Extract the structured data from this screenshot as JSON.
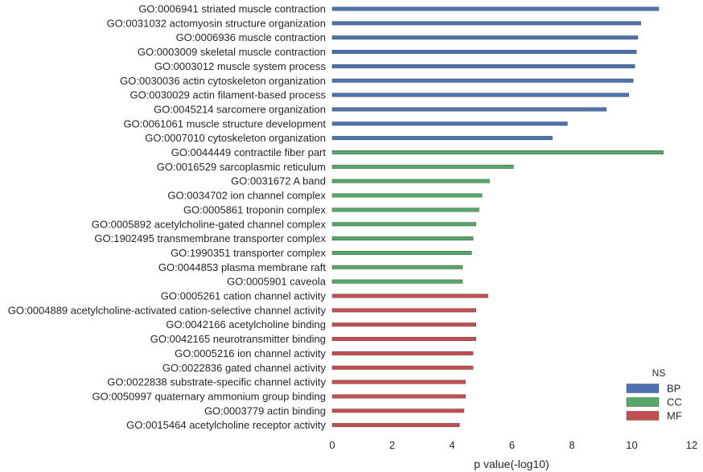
{
  "chart_data": {
    "type": "bar",
    "orientation": "horizontal",
    "xlabel": "p value(-log10)",
    "ylabel": "",
    "xlim": [
      0,
      12
    ],
    "xticks": [
      0,
      2,
      4,
      6,
      8,
      10,
      12
    ],
    "grid": false,
    "legend": {
      "title": "NS",
      "placement": "bottom-right",
      "entries": [
        {
          "name": "BP",
          "color": "#4c72b0"
        },
        {
          "name": "CC",
          "color": "#55a868"
        },
        {
          "name": "MF",
          "color": "#c44e52"
        }
      ]
    },
    "bars": [
      {
        "category": "GO:0006941 striated muscle contraction",
        "group": "BP",
        "value": 10.9
      },
      {
        "category": "GO:0031032 actomyosin structure organization",
        "group": "BP",
        "value": 10.3
      },
      {
        "category": "GO:0006936 muscle contraction",
        "group": "BP",
        "value": 10.2
      },
      {
        "category": "GO:0003009 skeletal muscle contraction",
        "group": "BP",
        "value": 10.15
      },
      {
        "category": "GO:0003012 muscle system process",
        "group": "BP",
        "value": 10.1
      },
      {
        "category": "GO:0030036 actin cytoskeleton organization",
        "group": "BP",
        "value": 10.05
      },
      {
        "category": "GO:0030029 actin filament-based process",
        "group": "BP",
        "value": 9.9
      },
      {
        "category": "GO:0045214 sarcomere organization",
        "group": "BP",
        "value": 9.15
      },
      {
        "category": "GO:0061061 muscle structure development",
        "group": "BP",
        "value": 7.85
      },
      {
        "category": "GO:0007010 cytoskeleton organization",
        "group": "BP",
        "value": 7.35
      },
      {
        "category": "GO:0044449 contractile fiber part",
        "group": "CC",
        "value": 11.05
      },
      {
        "category": "GO:0016529 sarcoplasmic reticulum",
        "group": "CC",
        "value": 6.05
      },
      {
        "category": "GO:0031672 A band",
        "group": "CC",
        "value": 5.25
      },
      {
        "category": "GO:0034702 ion channel complex",
        "group": "CC",
        "value": 5.0
      },
      {
        "category": "GO:0005861 troponin complex",
        "group": "CC",
        "value": 4.9
      },
      {
        "category": "GO:0005892 acetylcholine-gated channel complex",
        "group": "CC",
        "value": 4.8
      },
      {
        "category": "GO:1902495 transmembrane transporter complex",
        "group": "CC",
        "value": 4.7
      },
      {
        "category": "GO:1990351 transporter complex",
        "group": "CC",
        "value": 4.65
      },
      {
        "category": "GO:0044853 plasma membrane raft",
        "group": "CC",
        "value": 4.35
      },
      {
        "category": "GO:0005901 caveola",
        "group": "CC",
        "value": 4.35
      },
      {
        "category": "GO:0005261 cation channel activity",
        "group": "MF",
        "value": 5.2
      },
      {
        "category": "GO:0004889 acetylcholine-activated cation-selective channel activity",
        "group": "MF",
        "value": 4.8
      },
      {
        "category": "GO:0042166 acetylcholine binding",
        "group": "MF",
        "value": 4.8
      },
      {
        "category": "GO:0042165 neurotransmitter binding",
        "group": "MF",
        "value": 4.8
      },
      {
        "category": "GO:0005216 ion channel activity",
        "group": "MF",
        "value": 4.7
      },
      {
        "category": "GO:0022836 gated channel activity",
        "group": "MF",
        "value": 4.7
      },
      {
        "category": "GO:0022838 substrate-specific channel activity",
        "group": "MF",
        "value": 4.45
      },
      {
        "category": "GO:0050997 quaternary ammonium group binding",
        "group": "MF",
        "value": 4.45
      },
      {
        "category": "GO:0003779 actin binding",
        "group": "MF",
        "value": 4.4
      },
      {
        "category": "GO:0015464 acetylcholine receptor activity",
        "group": "MF",
        "value": 4.25
      }
    ]
  }
}
